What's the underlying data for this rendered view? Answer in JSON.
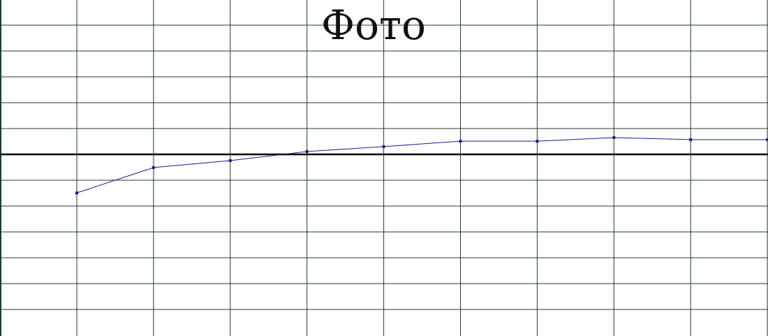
{
  "chart_data": {
    "type": "line",
    "title": "Фото",
    "xlabel": "",
    "ylabel": "",
    "grid": true,
    "x_categories": 10,
    "y_gridlines_above_baseline": 5,
    "y_gridlines_below_baseline": 6,
    "series": [
      {
        "color": "#1a1a8c",
        "values": [
          -1.49,
          -0.51,
          -0.24,
          0.11,
          0.3,
          0.51,
          0.51,
          0.65,
          0.57,
          0.57
        ]
      }
    ],
    "ylim": [
      -6.0,
      6.0
    ]
  },
  "colors": {
    "grid": "#1f3b33",
    "baseline": "#000000",
    "line": "#1a1a8c"
  }
}
